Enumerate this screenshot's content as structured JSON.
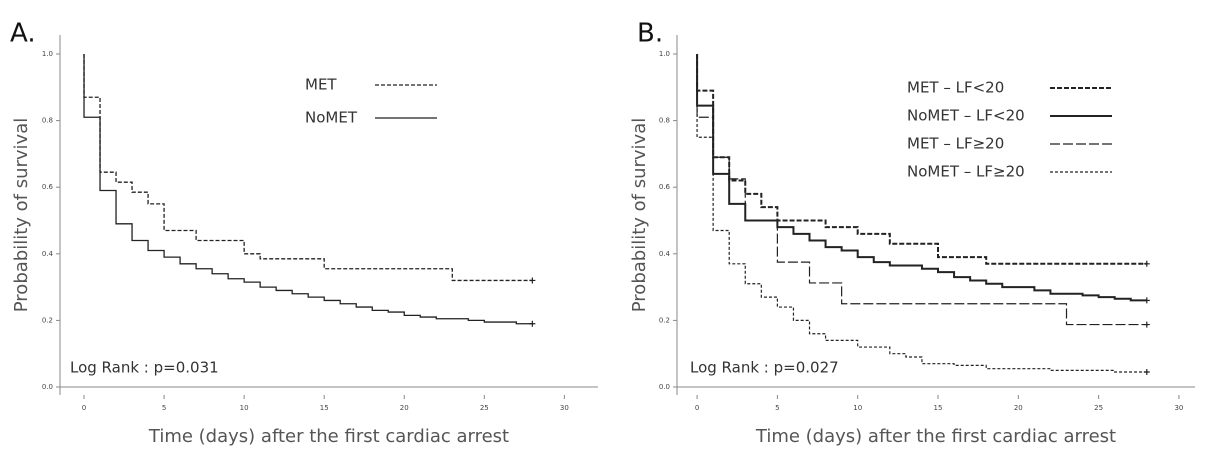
{
  "chart_data": [
    {
      "type": "step",
      "panel_label": "A.",
      "xlabel": "Time (days) after the first cardiac arrest",
      "ylabel": "Probability of survival",
      "annotation": "Log Rank : p=0.031",
      "xlim": [
        -1.5,
        32.1
      ],
      "ylim": [
        -0.024,
        1.057
      ],
      "xticks": [
        0,
        5,
        10,
        15,
        20,
        25,
        30
      ],
      "yticks": [
        {
          "value": 0,
          "label": "0.0"
        },
        0.2,
        0.4,
        0.6,
        0.8,
        {
          "value": 1,
          "label": "1.0"
        }
      ],
      "series": [
        {
          "name": "MET",
          "color": "#222222",
          "dash": "4 2",
          "width": 1.3,
          "x": [
            0,
            0,
            1,
            2,
            3,
            4,
            5,
            7,
            10,
            11,
            15,
            23,
            28
          ],
          "values": [
            1,
            0.87,
            0.645,
            0.615,
            0.585,
            0.55,
            0.47,
            0.44,
            0.4,
            0.385,
            0.355,
            0.32,
            0.32
          ]
        },
        {
          "name": "NoMET",
          "color": "#222222",
          "dash": "none",
          "width": 1.3,
          "x": [
            0,
            0,
            1,
            2,
            3,
            4,
            5,
            6,
            7,
            8,
            9,
            10,
            11,
            12,
            13,
            14,
            15,
            16,
            17,
            18,
            19,
            20,
            21,
            22,
            24,
            25,
            27,
            28
          ],
          "values": [
            1,
            0.81,
            0.59,
            0.49,
            0.44,
            0.41,
            0.39,
            0.37,
            0.355,
            0.34,
            0.325,
            0.315,
            0.3,
            0.29,
            0.28,
            0.27,
            0.26,
            0.25,
            0.24,
            0.23,
            0.225,
            0.215,
            0.21,
            0.205,
            0.2,
            0.195,
            0.19,
            0.19
          ]
        }
      ]
    },
    {
      "type": "step",
      "panel_label": "B.",
      "xlabel": "Time (days) after the first cardiac arrest",
      "ylabel": "Probability of survival",
      "annotation": "Log Rank : p=0.027",
      "xlim": [
        -1.25,
        31
      ],
      "ylim": [
        -0.024,
        1.057
      ],
      "xticks": [
        0,
        5,
        10,
        15,
        20,
        25,
        30
      ],
      "yticks": [
        {
          "value": 0,
          "label": "0.0"
        },
        0.2,
        0.4,
        0.6,
        0.8,
        {
          "value": 1,
          "label": "1.0"
        }
      ],
      "series": [
        {
          "name": "MET – LF<20",
          "color": "#222222",
          "dash": "5 2",
          "width": 2,
          "x": [
            0,
            0,
            1,
            2,
            3,
            4,
            5,
            8,
            10,
            12,
            15,
            18,
            28
          ],
          "values": [
            1,
            0.89,
            0.69,
            0.62,
            0.58,
            0.54,
            0.5,
            0.48,
            0.46,
            0.43,
            0.39,
            0.37,
            0.37
          ]
        },
        {
          "name": "NoMET – LF<20",
          "color": "#222222",
          "dash": "none",
          "width": 2,
          "x": [
            0,
            0,
            1,
            2,
            3,
            5,
            6,
            7,
            8,
            9,
            10,
            11,
            12,
            14,
            15,
            16,
            17,
            18,
            19,
            21,
            22,
            24,
            25,
            26,
            27,
            28
          ],
          "values": [
            1,
            0.845,
            0.64,
            0.55,
            0.5,
            0.48,
            0.46,
            0.44,
            0.42,
            0.41,
            0.39,
            0.375,
            0.365,
            0.355,
            0.345,
            0.33,
            0.32,
            0.31,
            0.3,
            0.29,
            0.28,
            0.275,
            0.27,
            0.265,
            0.26,
            0.26
          ]
        },
        {
          "name": "MET – LF≥20",
          "color": "#222222",
          "dash": "10 3",
          "width": 1.2,
          "x": [
            0,
            0,
            1,
            2,
            3,
            5,
            7,
            9,
            23,
            28
          ],
          "values": [
            1,
            0.81,
            0.69,
            0.625,
            0.5,
            0.375,
            0.3125,
            0.25,
            0.1875,
            0.1875
          ]
        },
        {
          "name": "NoMET – LF≥20",
          "color": "#222222",
          "dash": "3 2",
          "width": 1.2,
          "x": [
            0,
            0,
            1,
            2,
            3,
            4,
            5,
            6,
            7,
            8,
            10,
            12,
            13,
            14,
            16,
            18,
            22,
            26,
            28
          ],
          "values": [
            1,
            0.75,
            0.47,
            0.37,
            0.31,
            0.27,
            0.24,
            0.2,
            0.16,
            0.14,
            0.12,
            0.1,
            0.09,
            0.07,
            0.065,
            0.055,
            0.05,
            0.045,
            0.045
          ]
        }
      ]
    }
  ]
}
